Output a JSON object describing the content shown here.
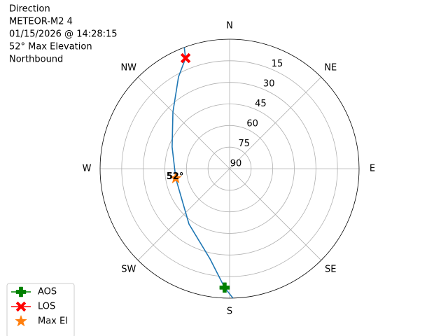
{
  "chart_data": {
    "type": "polar",
    "title_lines": [
      "Direction",
      "METEOR-M2 4",
      "01/15/2026 @ 14:28:15",
      "52° Max Elevation",
      "Northbound"
    ],
    "rlim": [
      90,
      0
    ],
    "rticks": [
      15,
      30,
      45,
      60,
      75,
      90
    ],
    "thetaticks": [
      {
        "value": 0,
        "label": "N"
      },
      {
        "value": 45,
        "label": "NE"
      },
      {
        "value": 90,
        "label": "E"
      },
      {
        "value": 135,
        "label": "SE"
      },
      {
        "value": 180,
        "label": "S"
      },
      {
        "value": 225,
        "label": "SW"
      },
      {
        "value": 270,
        "label": "W"
      },
      {
        "value": 315,
        "label": "NW"
      }
    ],
    "grid": true,
    "legend": "lower left",
    "series": [
      {
        "kind": "line",
        "color": "#1f77b4",
        "theta": [
          178.5,
          182.4,
          192.2,
          216.3,
          260,
          290.7,
          315,
          330.9,
          338.3,
          339.5
        ],
        "values": [
          0,
          7.3,
          25.8,
          42.3,
          52,
          47.3,
          34.3,
          17.0,
          7.3,
          0
        ]
      },
      {
        "name": "AOS",
        "kind": "plus",
        "color": "#008000",
        "theta": [
          182.4
        ],
        "values": [
          7.3
        ]
      },
      {
        "name": "LOS",
        "kind": "x",
        "color": "#ff0000",
        "theta": [
          338.3
        ],
        "values": [
          7.3
        ]
      },
      {
        "name": "Max El",
        "kind": "star",
        "color": "#ff7f0e",
        "theta": [
          260
        ],
        "values": [
          52
        ],
        "value_labels": [
          "52°"
        ]
      }
    ]
  }
}
